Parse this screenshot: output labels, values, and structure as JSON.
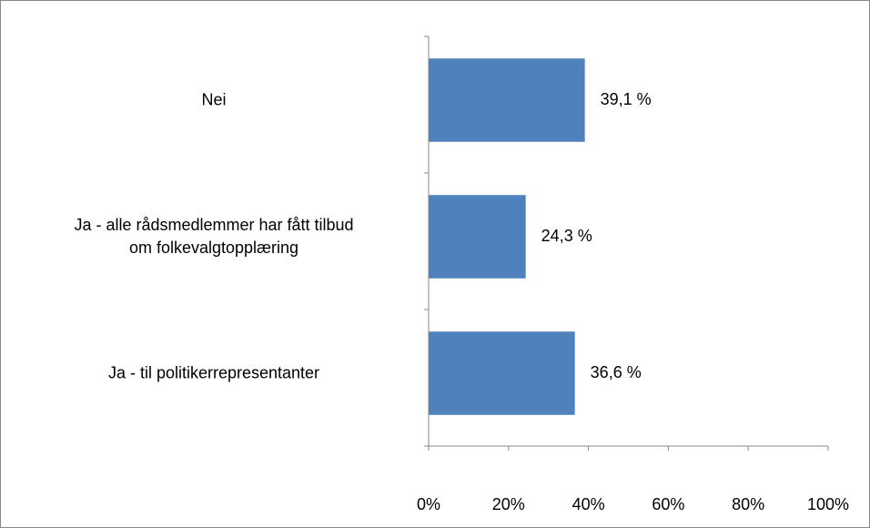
{
  "chart_data": {
    "type": "bar",
    "orientation": "horizontal",
    "categories": [
      "Nei",
      "Ja - alle rådsmedlemmer har fått tilbud\nom folkevalgtopplæring",
      "Ja - til politikerrepresentanter"
    ],
    "values": [
      39.1,
      24.3,
      36.6
    ],
    "value_labels": [
      "39,1 %",
      "24,3 %",
      "36,6 %"
    ],
    "color": "#4f81bd",
    "xlim": [
      0,
      100
    ],
    "xticks": [
      {
        "value": 0,
        "label": "0%"
      },
      {
        "value": 20,
        "label": "20%"
      },
      {
        "value": 40,
        "label": "40%"
      },
      {
        "value": 60,
        "label": "60%"
      },
      {
        "value": 80,
        "label": "80%"
      },
      {
        "value": 100,
        "label": "100%"
      }
    ],
    "grid": false
  }
}
